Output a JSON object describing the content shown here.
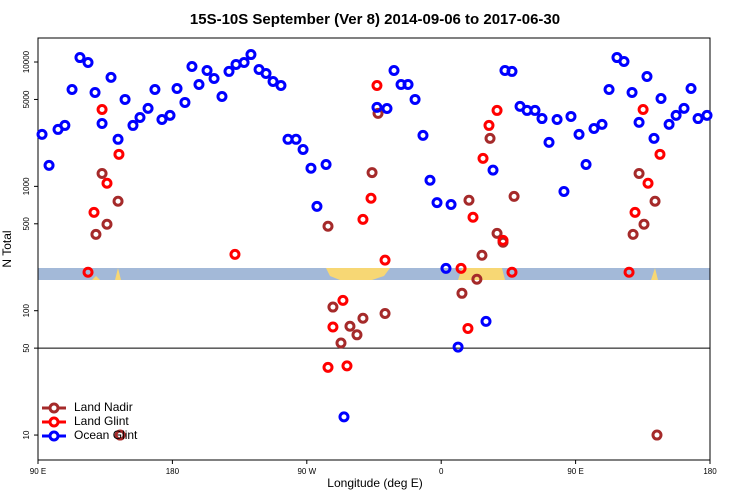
{
  "chart_data": {
    "type": "scatter",
    "title": "15S-10S September (Ver 8)   2014-09-06 to 2017-06-30",
    "x_label": "Longitude (deg E)",
    "y_label": "N Total",
    "log_y": true,
    "xlim": [
      90,
      540
    ],
    "ylim": [
      6.3,
      15600
    ],
    "xticks": [
      {
        "value": 90,
        "label": "90 E"
      },
      180,
      {
        "value": 270,
        "label": "90 W"
      },
      {
        "value": 360,
        "label": "0"
      },
      {
        "value": 450,
        "label": "90 E"
      },
      {
        "value": 540,
        "label": "180"
      }
    ],
    "yticks": [
      10,
      50,
      100,
      500,
      1000,
      5000,
      10000
    ],
    "reference_line": 50,
    "legend_position": "lower left",
    "series": [
      {
        "name": "Land Nadir",
        "color": "#a52a2a",
        "x": [
          128.8,
          132.9,
          136.2,
          143.6,
          145,
          284.2,
          287.5,
          292.9,
          298.9,
          303.6,
          307.6,
          313.7,
          317.7,
          322.4,
          373.9,
          378.6,
          383.9,
          387.3,
          392.7,
          397.4,
          401.4,
          408.8,
          488.5,
          492.5,
          495.8,
          503.2,
          504.5
        ],
        "values": [
          411,
          1270,
          496,
          759,
          10,
          478,
          107,
          55,
          75,
          64,
          87,
          1290,
          3860,
          95,
          138,
          773,
          179,
          279,
          2430,
          419,
          355,
          830,
          411,
          1270,
          496,
          759,
          10
        ]
      },
      {
        "name": "Land Glint",
        "color": "#ff0000",
        "x": [
          123.5,
          127.5,
          132.9,
          136.2,
          144.2,
          221.9,
          287.5,
          294.2,
          284.2,
          296.9,
          307.6,
          313,
          317,
          322.4,
          373.3,
          377.9,
          381.3,
          388,
          392,
          397.4,
          401.4,
          407.4,
          485.8,
          489.8,
          495.2,
          498.5,
          506.5
        ],
        "values": [
          204,
          618,
          4150,
          1060,
          1810,
          284,
          74,
          121,
          35,
          36,
          543,
          802,
          6470,
          255,
          219,
          72,
          564,
          1680,
          3090,
          4080,
          368,
          204,
          204,
          618,
          4150,
          1060,
          1810
        ]
      },
      {
        "name": "Ocean Glint",
        "color": "#0000ff",
        "x": [
          92.7,
          97.4,
          103.4,
          108,
          112.8,
          118.1,
          123.5,
          128.2,
          132.9,
          138.9,
          143.6,
          148.3,
          153.6,
          158.3,
          163.7,
          168.3,
          173,
          178.4,
          183.1,
          188.4,
          193.1,
          197.8,
          203.2,
          207.9,
          213.2,
          217.9,
          222.6,
          228,
          232.6,
          238,
          242.7,
          247.4,
          252.7,
          257.4,
          262.8,
          267.5,
          272.8,
          276.8,
          282.9,
          294.9,
          317,
          323.7,
          328.4,
          333.1,
          337.8,
          342.5,
          347.8,
          352.5,
          357.2,
          366.6,
          363.2,
          371.3,
          390,
          394.7,
          402.7,
          407.4,
          412.8,
          417.5,
          422.8,
          427.5,
          432.2,
          437.6,
          442.2,
          446.9,
          452.3,
          457,
          462.3,
          467.7,
          472.4,
          477.7,
          482.4,
          487.8,
          492.5,
          497.8,
          502.5,
          507.2,
          512.6,
          517.3,
          522.6,
          527.3,
          532,
          538
        ],
        "values": [
          2620,
          1475,
          2870,
          3090,
          6010,
          10860,
          9910,
          5690,
          3200,
          7520,
          2390,
          5000,
          3090,
          3580,
          4240,
          6010,
          3450,
          3720,
          6120,
          4730,
          9200,
          6590,
          8550,
          7370,
          5280,
          8400,
          9560,
          9910,
          11480,
          8710,
          8090,
          6970,
          6470,
          2390,
          2390,
          1980,
          1400,
          690,
          1500,
          14,
          4320,
          4230,
          8550,
          6590,
          6590,
          5000,
          2570,
          1120,
          740,
          715,
          219,
          51,
          82,
          1350,
          8550,
          8400,
          4400,
          4080,
          4080,
          3510,
          2260,
          3450,
          910,
          3650,
          2620,
          1500,
          2920,
          3150,
          6010,
          10860,
          10090,
          5690,
          3270,
          7650,
          2430,
          5090,
          3150,
          3720,
          4240,
          6120,
          3510,
          3720
        ]
      }
    ]
  }
}
